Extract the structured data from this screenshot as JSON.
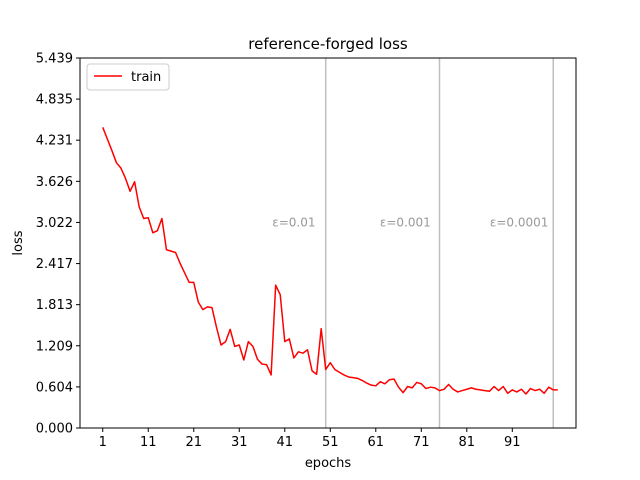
{
  "chart_data": {
    "type": "line",
    "title": "reference-forged loss",
    "xlabel": "epochs",
    "ylabel": "loss",
    "xlim": [
      -4,
      105
    ],
    "ylim": [
      0,
      5.439
    ],
    "xticks": [
      1,
      11,
      21,
      31,
      41,
      51,
      61,
      71,
      81,
      91
    ],
    "yticks": [
      0.0,
      0.604,
      1.209,
      1.813,
      2.417,
      3.022,
      3.626,
      4.231,
      4.835,
      5.439
    ],
    "ytick_labels": [
      "0.000",
      "0.604",
      "1.209",
      "1.813",
      "2.417",
      "3.022",
      "3.626",
      "4.231",
      "4.835",
      "5.439"
    ],
    "grid": false,
    "legend": {
      "position": "top-left",
      "entries": [
        "train"
      ]
    },
    "colors": {
      "train": "#ff0000",
      "vline": "#bfbfbf",
      "annotation": "#999999"
    },
    "series": [
      {
        "name": "train",
        "x": [
          1,
          2,
          3,
          4,
          5,
          6,
          7,
          8,
          9,
          10,
          11,
          12,
          13,
          14,
          15,
          16,
          17,
          18,
          19,
          20,
          21,
          22,
          23,
          24,
          25,
          26,
          27,
          28,
          29,
          30,
          31,
          32,
          33,
          34,
          35,
          36,
          37,
          38,
          39,
          40,
          41,
          42,
          43,
          44,
          45,
          46,
          47,
          48,
          49,
          50,
          51,
          52,
          53,
          54,
          55,
          56,
          57,
          58,
          59,
          60,
          61,
          62,
          63,
          64,
          65,
          66,
          67,
          68,
          69,
          70,
          71,
          72,
          73,
          74,
          75,
          76,
          77,
          78,
          79,
          80,
          81,
          82,
          83,
          84,
          85,
          86,
          87,
          88,
          89,
          90,
          91,
          92,
          93,
          94,
          95,
          96,
          97,
          98,
          99,
          100,
          101
        ],
        "y": [
          4.42,
          4.25,
          4.08,
          3.9,
          3.82,
          3.67,
          3.48,
          3.62,
          3.25,
          3.08,
          3.09,
          2.87,
          2.9,
          3.08,
          2.62,
          2.6,
          2.58,
          2.42,
          2.28,
          2.14,
          2.14,
          1.85,
          1.74,
          1.78,
          1.77,
          1.48,
          1.22,
          1.27,
          1.45,
          1.2,
          1.22,
          1.0,
          1.27,
          1.2,
          1.01,
          0.94,
          0.93,
          0.78,
          2.1,
          1.96,
          1.27,
          1.31,
          1.03,
          1.12,
          1.1,
          1.15,
          0.84,
          0.79,
          1.46,
          0.86,
          0.96,
          0.86,
          0.82,
          0.78,
          0.75,
          0.74,
          0.73,
          0.7,
          0.66,
          0.63,
          0.62,
          0.68,
          0.65,
          0.71,
          0.72,
          0.6,
          0.52,
          0.61,
          0.59,
          0.67,
          0.65,
          0.58,
          0.6,
          0.59,
          0.55,
          0.57,
          0.64,
          0.57,
          0.53,
          0.55,
          0.57,
          0.59,
          0.57,
          0.56,
          0.55,
          0.54,
          0.61,
          0.55,
          0.61,
          0.51,
          0.56,
          0.53,
          0.57,
          0.5,
          0.58,
          0.55,
          0.57,
          0.51,
          0.6,
          0.56,
          0.56
        ]
      }
    ],
    "vlines": [
      50,
      75,
      100
    ],
    "annotations": [
      {
        "text": "ε=0.01",
        "x": 43,
        "y": 3.022
      },
      {
        "text": "ε=0.001",
        "x": 67.5,
        "y": 3.022
      },
      {
        "text": "ε=0.0001",
        "x": 92.5,
        "y": 3.022
      }
    ]
  }
}
